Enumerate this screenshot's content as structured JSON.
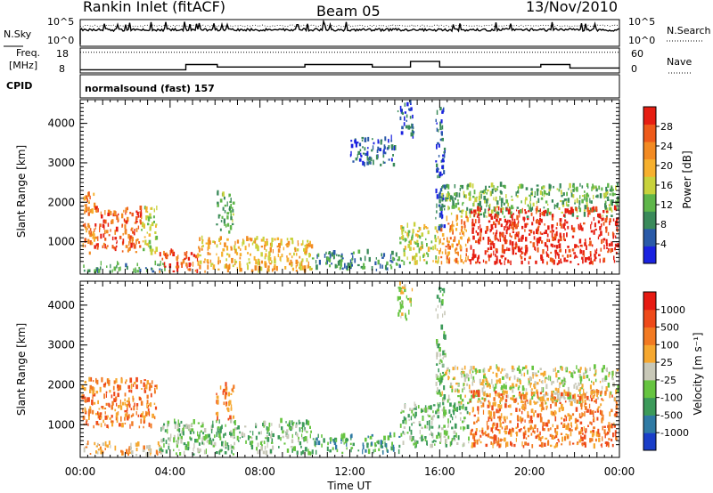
{
  "header": {
    "station": "Rankin Inlet (fitACF)",
    "beam": "Beam 05",
    "date": "13/Nov/2010"
  },
  "noise_panel": {
    "left_label": "N.Sky",
    "right_label": "N.Search",
    "left_ticks": [
      "10^5",
      "10^0"
    ],
    "right_ticks": [
      "10^5",
      "10^0"
    ]
  },
  "freq_panel": {
    "left_label_1": "Freq.",
    "left_label_2": "[MHz]",
    "right_label": "Nave",
    "left_ticks": [
      "18",
      "8"
    ],
    "right_ticks": [
      "60",
      "0"
    ]
  },
  "cpid": {
    "label": "CPID",
    "program": "normalsound (fast) 157"
  },
  "chart_data": [
    {
      "type": "heatmap",
      "name": "power",
      "ylabel": "Slant Range [km]",
      "y_ticks": [
        "4000",
        "3000",
        "2000",
        "1000"
      ],
      "y_tick_values": [
        4000,
        3000,
        2000,
        1000
      ],
      "ylim": [
        180,
        4600
      ],
      "xlim": [
        0,
        24
      ],
      "colorbar_label": "Power [dB]",
      "colorbar_ticks": [
        "28",
        "24",
        "20",
        "16",
        "12",
        "8",
        "4"
      ],
      "colors": [
        "#1a22e0",
        "#2a5aa8",
        "#3a8a5a",
        "#5fb64a",
        "#c8d23c",
        "#f6b02e",
        "#f28a22",
        "#ee5a1a",
        "#e61e12"
      ],
      "regions": [
        {
          "t0": 0.05,
          "t1": 0.6,
          "r0": 650,
          "r1": 2200,
          "c": 6
        },
        {
          "t0": 0.6,
          "t1": 2.7,
          "r0": 700,
          "r1": 1850,
          "c": 7
        },
        {
          "t0": 2.7,
          "t1": 3.4,
          "r0": 650,
          "r1": 1850,
          "c": 4
        },
        {
          "t0": 0.1,
          "t1": 3.8,
          "r0": 200,
          "r1": 420,
          "c": 2
        },
        {
          "t0": 3.5,
          "t1": 5.2,
          "r0": 200,
          "r1": 720,
          "c": 7
        },
        {
          "t0": 5.2,
          "t1": 10.3,
          "r0": 200,
          "r1": 1050,
          "c": 5
        },
        {
          "t0": 6.0,
          "t1": 6.8,
          "r0": 1200,
          "r1": 2200,
          "c": 3
        },
        {
          "t0": 10.3,
          "t1": 14.2,
          "r0": 250,
          "r1": 700,
          "c": 2
        },
        {
          "t0": 14.2,
          "t1": 16.0,
          "r0": 400,
          "r1": 1400,
          "c": 4
        },
        {
          "t0": 16.0,
          "t1": 17.3,
          "r0": 400,
          "r1": 1600,
          "c": 6
        },
        {
          "t0": 16.0,
          "t1": 23.9,
          "r0": 1600,
          "r1": 2400,
          "c": 3
        },
        {
          "t0": 17.3,
          "t1": 23.9,
          "r0": 400,
          "r1": 1800,
          "c": 8
        },
        {
          "t0": 14.1,
          "t1": 14.8,
          "r0": 3600,
          "r1": 4500,
          "c": 1
        },
        {
          "t0": 15.8,
          "t1": 16.2,
          "r0": 1200,
          "r1": 4400,
          "c": 1
        },
        {
          "t0": 12.0,
          "t1": 14.0,
          "r0": 2900,
          "r1": 3600,
          "c": 1
        }
      ]
    },
    {
      "type": "heatmap",
      "name": "velocity",
      "ylabel": "Slant Range [km]",
      "y_ticks": [
        "4000",
        "3000",
        "2000",
        "1000"
      ],
      "y_tick_values": [
        4000,
        3000,
        2000,
        1000
      ],
      "ylim": [
        180,
        4600
      ],
      "xlim": [
        0,
        24
      ],
      "colorbar_label": "Velocity [m s⁻¹]",
      "colorbar_ticks": [
        "1000",
        "500",
        "100",
        "25",
        "-25",
        "-100",
        "-500",
        "-1000"
      ],
      "colors": [
        "#1a3ec8",
        "#2f7aa4",
        "#3c9a5a",
        "#66c440",
        "#c8c8b8",
        "#f6a830",
        "#f27a22",
        "#ee4a1a",
        "#e61a12"
      ],
      "regions": [
        {
          "t0": 0.05,
          "t1": 3.4,
          "r0": 900,
          "r1": 2100,
          "c": 6
        },
        {
          "t0": 0.1,
          "t1": 3.6,
          "r0": 200,
          "r1": 500,
          "c": 5
        },
        {
          "t0": 3.5,
          "t1": 10.3,
          "r0": 220,
          "r1": 1050,
          "c": 3
        },
        {
          "t0": 6.0,
          "t1": 6.8,
          "r0": 1100,
          "r1": 2000,
          "c": 6
        },
        {
          "t0": 10.3,
          "t1": 14.2,
          "r0": 250,
          "r1": 700,
          "c": 2
        },
        {
          "t0": 14.2,
          "t1": 16.0,
          "r0": 400,
          "r1": 1500,
          "c": 3
        },
        {
          "t0": 16.0,
          "t1": 23.9,
          "r0": 1500,
          "r1": 2400,
          "c": 4
        },
        {
          "t0": 16.0,
          "t1": 17.3,
          "r0": 400,
          "r1": 1500,
          "c": 3
        },
        {
          "t0": 17.3,
          "t1": 23.9,
          "r0": 400,
          "r1": 1800,
          "c": 6
        },
        {
          "t0": 14.1,
          "t1": 14.8,
          "r0": 3600,
          "r1": 4500,
          "c": 4
        },
        {
          "t0": 15.8,
          "t1": 16.2,
          "r0": 1200,
          "r1": 4400,
          "c": 3
        }
      ]
    }
  ],
  "x_axis": {
    "label": "Time UT",
    "ticks": [
      "00:00",
      "04:00",
      "08:00",
      "12:00",
      "16:00",
      "20:00",
      "00:00"
    ],
    "tick_values": [
      0,
      4,
      8,
      12,
      16,
      20,
      24
    ]
  },
  "freq_steps": [
    {
      "t0": 0.0,
      "t1": 4.7,
      "level": 9.3
    },
    {
      "t0": 4.7,
      "t1": 6.1,
      "level": 11.4
    },
    {
      "t0": 6.1,
      "t1": 10.0,
      "level": 10.4
    },
    {
      "t0": 10.0,
      "t1": 13.0,
      "level": 11.4
    },
    {
      "t0": 13.0,
      "t1": 14.7,
      "level": 10.4
    },
    {
      "t0": 14.7,
      "t1": 16.0,
      "level": 12.6
    },
    {
      "t0": 16.0,
      "t1": 20.5,
      "level": 10.4
    },
    {
      "t0": 20.5,
      "t1": 21.8,
      "level": 11.4
    },
    {
      "t0": 21.8,
      "t1": 24.0,
      "level": 10.0
    }
  ],
  "nave_level": 50
}
